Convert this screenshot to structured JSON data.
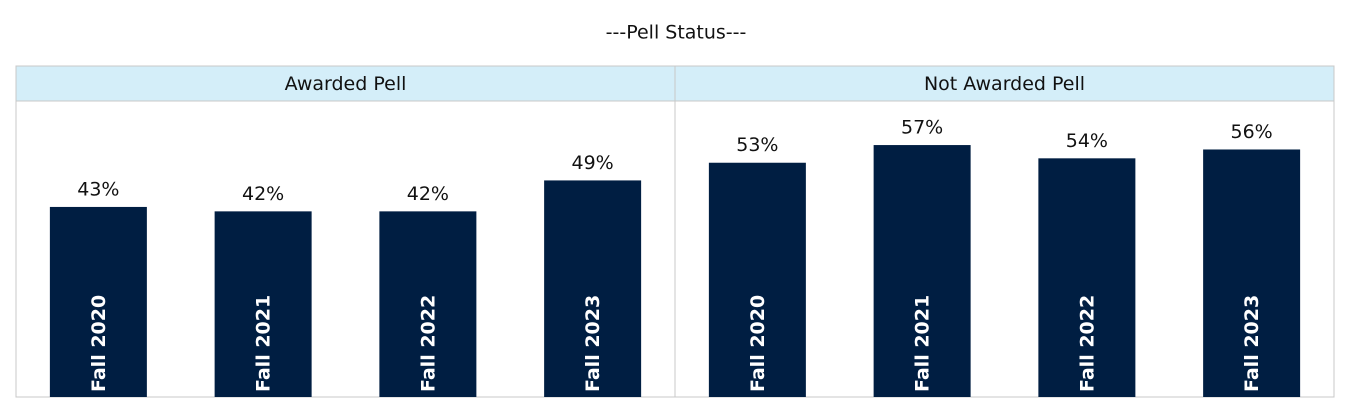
{
  "title": "---Pell Status---",
  "chart_data": [
    {
      "type": "bar",
      "title": "Awarded Pell",
      "color": "#001e42",
      "categories": [
        "Fall 2020",
        "Fall 2021",
        "Fall 2022",
        "Fall 2023"
      ],
      "values": [
        43,
        42,
        42,
        49
      ],
      "value_labels": [
        "43%",
        "42%",
        "42%",
        "49%"
      ]
    },
    {
      "type": "bar",
      "title": "Not Awarded Pell",
      "color": "#001e42",
      "categories": [
        "Fall 2020",
        "Fall 2021",
        "Fall 2022",
        "Fall 2023"
      ],
      "values": [
        53,
        57,
        54,
        56
      ],
      "value_labels": [
        "53%",
        "57%",
        "54%",
        "56%"
      ]
    }
  ]
}
